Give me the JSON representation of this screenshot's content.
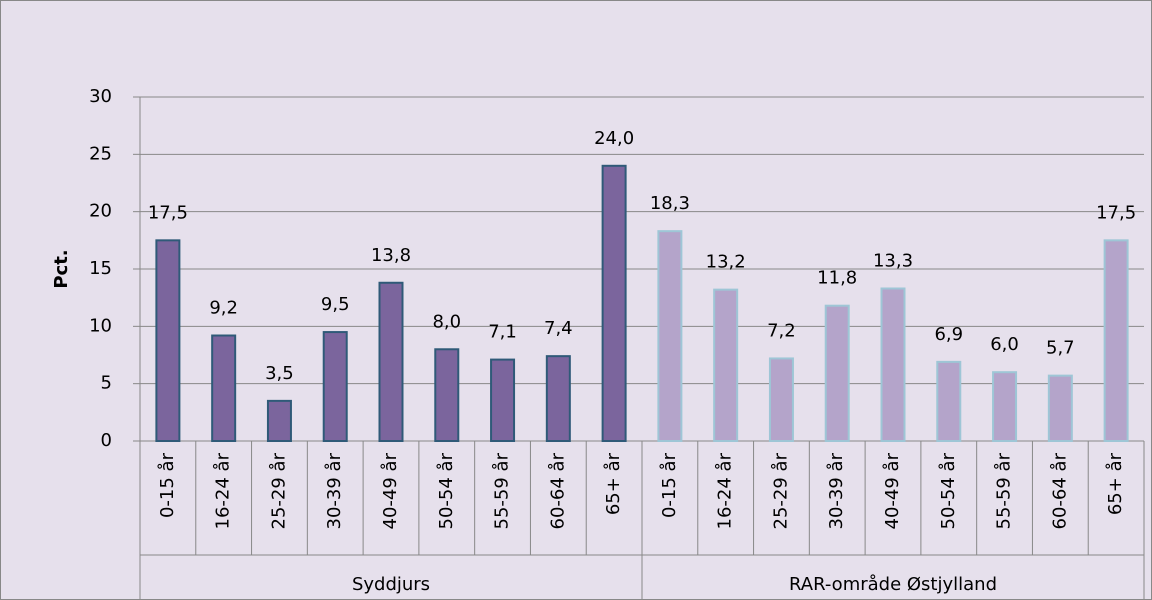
{
  "chart_data": {
    "type": "bar",
    "y_label": "Pct.",
    "categories": [
      "0-15 år",
      "16-24 år",
      "25-29 år",
      "30-39 år",
      "40-49 år",
      "50-54 år",
      "55-59 år",
      "60-64 år",
      "65+ år"
    ],
    "series": [
      {
        "name": "Syddjurs",
        "color": "#7b659d",
        "edge": "#2f5a78",
        "values": [
          17.5,
          9.2,
          3.5,
          9.5,
          13.8,
          8.0,
          7.1,
          7.4,
          24.0
        ],
        "value_labels": [
          "17,5",
          "9,2",
          "3,5",
          "9,5",
          "13,8",
          "8,0",
          "7,1",
          "7,4",
          "24,0"
        ]
      },
      {
        "name": "RAR-område Østjylland",
        "color": "#b4a4ca",
        "edge": "#9ec6d6",
        "values": [
          18.3,
          13.2,
          7.2,
          11.8,
          13.3,
          6.9,
          6.0,
          5.7,
          17.5
        ],
        "value_labels": [
          "18,3",
          "13,2",
          "7,2",
          "11,8",
          "13,3",
          "6,9",
          "6,0",
          "5,7",
          "17,5"
        ]
      }
    ],
    "ylim": [
      0,
      30
    ],
    "yticks": [
      0,
      5,
      10,
      15,
      20,
      25,
      30
    ],
    "grid": true
  }
}
